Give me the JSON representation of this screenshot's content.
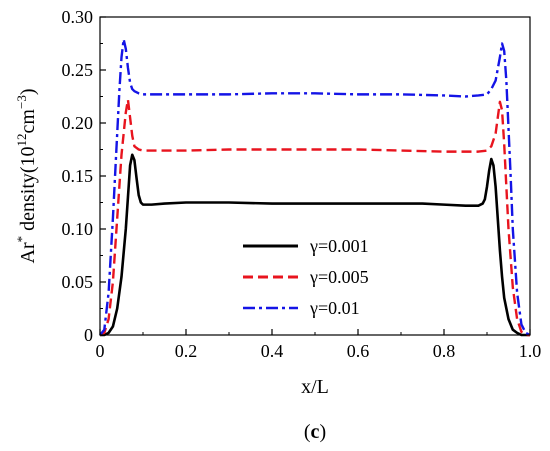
{
  "chart_data": {
    "type": "line",
    "xlabel": "x/L",
    "ylabel_parts": {
      "base": "Ar",
      "sup1": "*",
      "mid": " density(10",
      "sup2": "12",
      "mid2": "cm",
      "sup3": "−3",
      "end": ")"
    },
    "panel_label": {
      "open": "(",
      "letter": "c",
      "close": ")"
    },
    "xlim": [
      0,
      1.0
    ],
    "ylim": [
      0,
      0.3
    ],
    "x_ticks": [
      "0",
      "0.2",
      "0.4",
      "0.6",
      "0.8",
      "1.0"
    ],
    "y_ticks": [
      "0",
      "0.05",
      "0.10",
      "0.15",
      "0.20",
      "0.25",
      "0.30"
    ],
    "grid": false,
    "legend_position": "center-bottom",
    "series": [
      {
        "name": "γ=0.001",
        "color": "#000000",
        "style": "solid",
        "x": [
          0.0,
          0.01,
          0.02,
          0.03,
          0.04,
          0.05,
          0.06,
          0.065,
          0.07,
          0.075,
          0.08,
          0.085,
          0.09,
          0.095,
          0.1,
          0.105,
          0.11,
          0.12,
          0.15,
          0.2,
          0.25,
          0.3,
          0.4,
          0.5,
          0.6,
          0.7,
          0.75,
          0.8,
          0.85,
          0.88,
          0.89,
          0.895,
          0.9,
          0.905,
          0.91,
          0.915,
          0.92,
          0.925,
          0.93,
          0.935,
          0.94,
          0.95,
          0.96,
          0.97,
          0.98,
          0.99,
          1.0
        ],
        "y": [
          0.0,
          0.0,
          0.002,
          0.008,
          0.025,
          0.055,
          0.1,
          0.13,
          0.16,
          0.17,
          0.165,
          0.148,
          0.132,
          0.125,
          0.123,
          0.123,
          0.123,
          0.123,
          0.124,
          0.125,
          0.125,
          0.125,
          0.124,
          0.124,
          0.124,
          0.124,
          0.124,
          0.123,
          0.122,
          0.122,
          0.124,
          0.128,
          0.14,
          0.155,
          0.166,
          0.16,
          0.14,
          0.11,
          0.08,
          0.055,
          0.035,
          0.015,
          0.005,
          0.002,
          0.0,
          0.0,
          0.0
        ]
      },
      {
        "name": "γ=0.005",
        "color": "#e8141e",
        "style": "dashed",
        "x": [
          0.0,
          0.01,
          0.02,
          0.03,
          0.04,
          0.05,
          0.06,
          0.065,
          0.07,
          0.075,
          0.08,
          0.09,
          0.1,
          0.15,
          0.2,
          0.3,
          0.4,
          0.5,
          0.6,
          0.7,
          0.8,
          0.85,
          0.88,
          0.9,
          0.91,
          0.92,
          0.925,
          0.93,
          0.935,
          0.94,
          0.945,
          0.95,
          0.96,
          0.97,
          0.98,
          0.99,
          1.0
        ],
        "y": [
          0.0,
          0.002,
          0.015,
          0.05,
          0.11,
          0.17,
          0.21,
          0.222,
          0.205,
          0.188,
          0.178,
          0.175,
          0.174,
          0.174,
          0.174,
          0.175,
          0.175,
          0.175,
          0.175,
          0.174,
          0.173,
          0.173,
          0.173,
          0.174,
          0.178,
          0.19,
          0.205,
          0.22,
          0.212,
          0.18,
          0.14,
          0.1,
          0.045,
          0.015,
          0.003,
          0.0,
          0.0
        ]
      },
      {
        "name": "γ=0.01",
        "color": "#1414e6",
        "style": "dashdot",
        "x": [
          0.0,
          0.01,
          0.02,
          0.03,
          0.04,
          0.045,
          0.05,
          0.055,
          0.06,
          0.065,
          0.07,
          0.075,
          0.08,
          0.09,
          0.1,
          0.15,
          0.2,
          0.3,
          0.4,
          0.5,
          0.6,
          0.7,
          0.8,
          0.85,
          0.88,
          0.9,
          0.91,
          0.92,
          0.93,
          0.935,
          0.94,
          0.945,
          0.95,
          0.955,
          0.96,
          0.97,
          0.98,
          0.99,
          1.0
        ],
        "y": [
          0.0,
          0.005,
          0.04,
          0.11,
          0.19,
          0.23,
          0.262,
          0.279,
          0.27,
          0.252,
          0.238,
          0.232,
          0.23,
          0.228,
          0.227,
          0.227,
          0.227,
          0.227,
          0.228,
          0.228,
          0.227,
          0.227,
          0.226,
          0.225,
          0.226,
          0.227,
          0.232,
          0.24,
          0.262,
          0.275,
          0.268,
          0.24,
          0.195,
          0.15,
          0.1,
          0.04,
          0.01,
          0.002,
          0.0
        ]
      }
    ]
  }
}
